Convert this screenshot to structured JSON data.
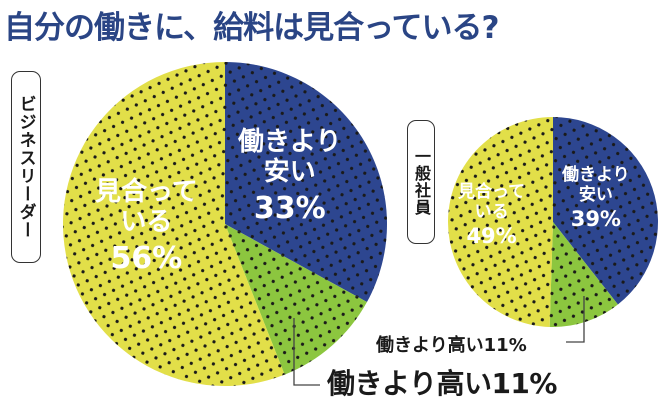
{
  "title": "自分の働きに、給料は見合っている?",
  "colors": {
    "title": "#2a4585",
    "cheap": "#2d4690",
    "high": "#8cc63f",
    "fit": "#e2df49",
    "dots": "#1a1a1a",
    "label_text": "#ffffff"
  },
  "groups": [
    {
      "label": "ビジネスリーダー",
      "slices": [
        {
          "line1": "働きより",
          "line2": "安い",
          "pct": "33%"
        },
        {
          "line1": "見合って",
          "line2": "いる",
          "pct": "56%"
        }
      ],
      "callout": "働きより高い11%"
    },
    {
      "label": "一般社員",
      "slices": [
        {
          "line1": "働きより",
          "line2": "安い",
          "pct": "39%"
        },
        {
          "line1": "見合って",
          "line2": "いる",
          "pct": "49%"
        }
      ],
      "callout": "働きより高い11%"
    }
  ],
  "chart_data": [
    {
      "type": "pie",
      "title": "自分の働きに、給料は見合っている? — ビジネスリーダー",
      "categories": [
        "働きより安い",
        "働きより高い",
        "見合っている"
      ],
      "values": [
        33,
        11,
        56
      ],
      "colors": [
        "#2d4690",
        "#8cc63f",
        "#e2df49"
      ],
      "start_angle": "12 o'clock, clockwise"
    },
    {
      "type": "pie",
      "title": "自分の働きに、給料は見合っている? — 一般社員",
      "categories": [
        "働きより安い",
        "働きより高い",
        "見合っている"
      ],
      "values": [
        39,
        11,
        49
      ],
      "colors": [
        "#2d4690",
        "#8cc63f",
        "#e2df49"
      ],
      "start_angle": "12 o'clock, clockwise"
    }
  ]
}
